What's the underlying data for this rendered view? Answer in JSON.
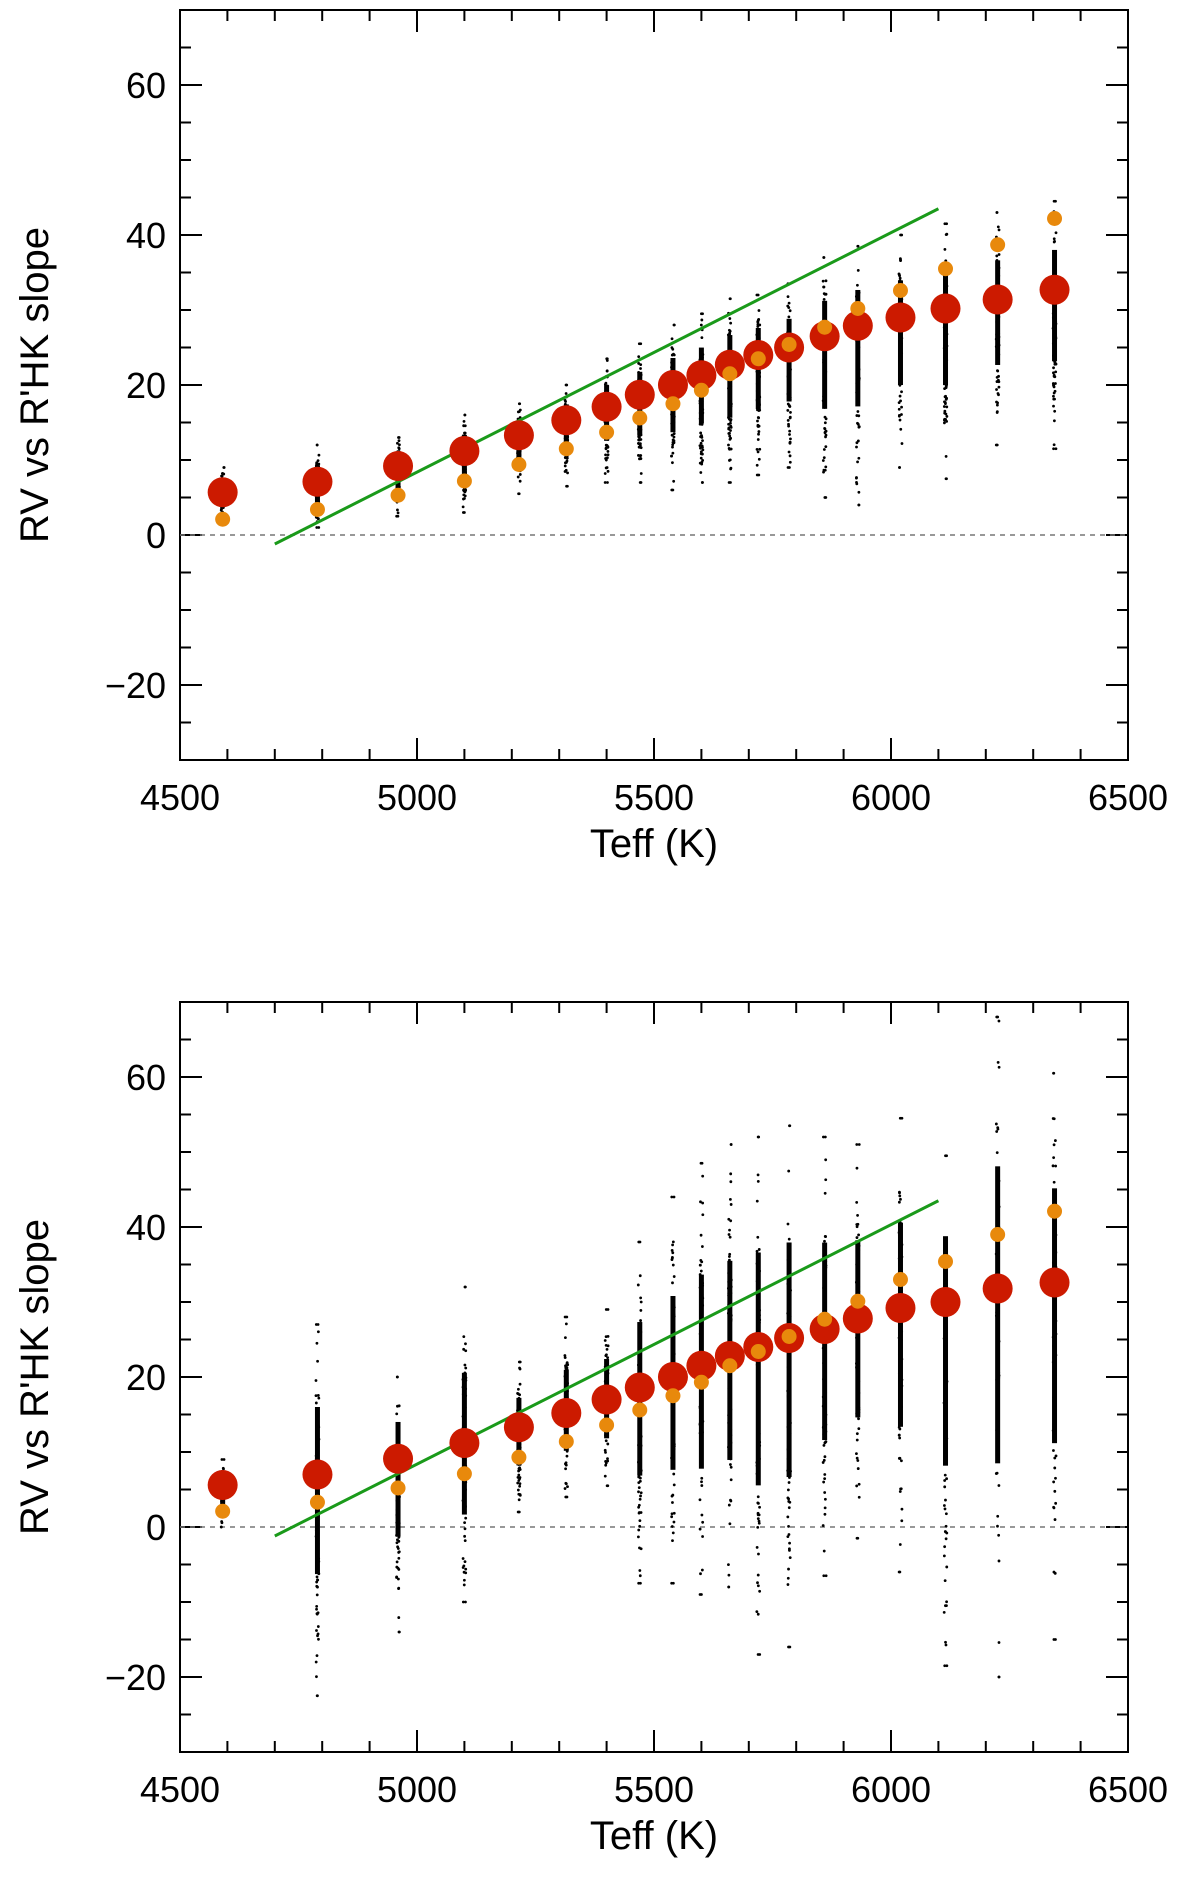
{
  "chart_data": [
    {
      "type": "scatter",
      "panel": "top",
      "xlabel": "Teff (K)",
      "ylabel": "RV vs R'HK slope",
      "xlim": [
        4500,
        6500
      ],
      "ylim": [
        -30,
        70
      ],
      "xticks": [
        4500,
        5000,
        5500,
        6000,
        6500
      ],
      "yticks": [
        -20,
        0,
        20,
        40,
        60
      ],
      "xtick_labels": [
        "4500",
        "5000",
        "5500",
        "6000",
        "6500"
      ],
      "ytick_labels": [
        "−20",
        "0",
        "20",
        "40",
        "60"
      ],
      "zero_line": 0,
      "series": [
        {
          "name": "large red points",
          "color": "#cc1a00",
          "x": [
            4590,
            4790,
            4960,
            5100,
            5215,
            5315,
            5400,
            5470,
            5540,
            5600,
            5660,
            5720,
            5785,
            5860,
            5930,
            6020,
            6115,
            6225,
            6345
          ],
          "y": [
            5.7,
            7.1,
            9.2,
            11.2,
            13.3,
            15.3,
            17.1,
            18.7,
            20.0,
            21.3,
            22.7,
            24.0,
            25.0,
            26.5,
            27.9,
            29.0,
            30.2,
            31.4,
            32.7
          ]
        },
        {
          "name": "small orange points",
          "color": "#e8890c",
          "x": [
            4590,
            4790,
            4960,
            5100,
            5215,
            5315,
            5400,
            5470,
            5540,
            5600,
            5660,
            5720,
            5785,
            5860,
            5930,
            6020,
            6115,
            6225,
            6345
          ],
          "y": [
            2.1,
            3.4,
            5.3,
            7.2,
            9.4,
            11.5,
            13.7,
            15.6,
            17.5,
            19.3,
            21.5,
            23.5,
            25.4,
            27.7,
            30.2,
            32.6,
            35.5,
            38.7,
            42.2
          ]
        },
        {
          "name": "green line",
          "color": "#1a9a1a",
          "x": [
            4700,
            6100
          ],
          "y": [
            -1.2,
            43.5
          ]
        }
      ],
      "scatter_ranges": {
        "color": "#000000",
        "x": [
          4590,
          4790,
          4960,
          5100,
          5215,
          5315,
          5400,
          5470,
          5540,
          5600,
          5660,
          5720,
          5785,
          5860,
          5930,
          6020,
          6115,
          6225,
          6345
        ],
        "ymin": [
          2,
          1,
          2.5,
          3,
          5.5,
          6.5,
          7,
          7,
          6,
          7,
          7,
          8,
          9,
          5,
          4,
          9,
          7.5,
          12,
          11.5
        ],
        "ymax": [
          9,
          12,
          13,
          16,
          17.5,
          20,
          23.5,
          25.5,
          28,
          29.5,
          31.5,
          32,
          33.5,
          37,
          38.5,
          40,
          41.5,
          43,
          44.5
        ]
      }
    },
    {
      "type": "scatter",
      "panel": "bottom",
      "xlabel": "Teff (K)",
      "ylabel": "RV vs R'HK slope",
      "xlim": [
        4500,
        6500
      ],
      "ylim": [
        -30,
        70
      ],
      "xticks": [
        4500,
        5000,
        5500,
        6000,
        6500
      ],
      "yticks": [
        -20,
        0,
        20,
        40,
        60
      ],
      "xtick_labels": [
        "4500",
        "5000",
        "5500",
        "6000",
        "6500"
      ],
      "ytick_labels": [
        "−20",
        "0",
        "20",
        "40",
        "60"
      ],
      "zero_line": 0,
      "series": [
        {
          "name": "large red points",
          "color": "#cc1a00",
          "x": [
            4590,
            4790,
            4960,
            5100,
            5215,
            5315,
            5400,
            5470,
            5540,
            5600,
            5660,
            5720,
            5785,
            5860,
            5930,
            6020,
            6115,
            6225,
            6345
          ],
          "y": [
            5.6,
            7.0,
            9.1,
            11.2,
            13.3,
            15.2,
            17.0,
            18.6,
            20.0,
            21.5,
            22.8,
            24.0,
            25.2,
            26.4,
            27.8,
            29.2,
            30.0,
            31.8,
            32.6
          ]
        },
        {
          "name": "small orange points",
          "color": "#e8890c",
          "x": [
            4590,
            4790,
            4960,
            5100,
            5215,
            5315,
            5400,
            5470,
            5540,
            5600,
            5660,
            5720,
            5785,
            5860,
            5930,
            6020,
            6115,
            6225,
            6345
          ],
          "y": [
            2.1,
            3.3,
            5.2,
            7.1,
            9.3,
            11.4,
            13.6,
            15.6,
            17.5,
            19.3,
            21.5,
            23.4,
            25.4,
            27.7,
            30.1,
            33.0,
            35.4,
            39.0,
            42.1
          ]
        },
        {
          "name": "green line",
          "color": "#1a9a1a",
          "x": [
            4700,
            6100
          ],
          "y": [
            -1.2,
            43.5
          ]
        }
      ],
      "scatter_ranges": {
        "color": "#000000",
        "x": [
          4590,
          4790,
          4960,
          5100,
          5215,
          5315,
          5400,
          5470,
          5540,
          5600,
          5660,
          5720,
          5785,
          5860,
          5930,
          6020,
          6115,
          6225,
          6345
        ],
        "ymin": [
          0,
          -22.5,
          -14,
          -10,
          2,
          4,
          5.5,
          -7.5,
          -7.5,
          -9,
          -8,
          -17,
          -16,
          -6.5,
          -1.5,
          -6,
          -18.5,
          -20,
          -15
        ],
        "ymax": [
          9,
          27,
          20,
          32,
          22,
          28,
          29,
          38,
          44,
          48.5,
          51,
          52,
          53.5,
          52,
          51,
          54.5,
          49.5,
          68,
          60.5
        ]
      }
    }
  ]
}
